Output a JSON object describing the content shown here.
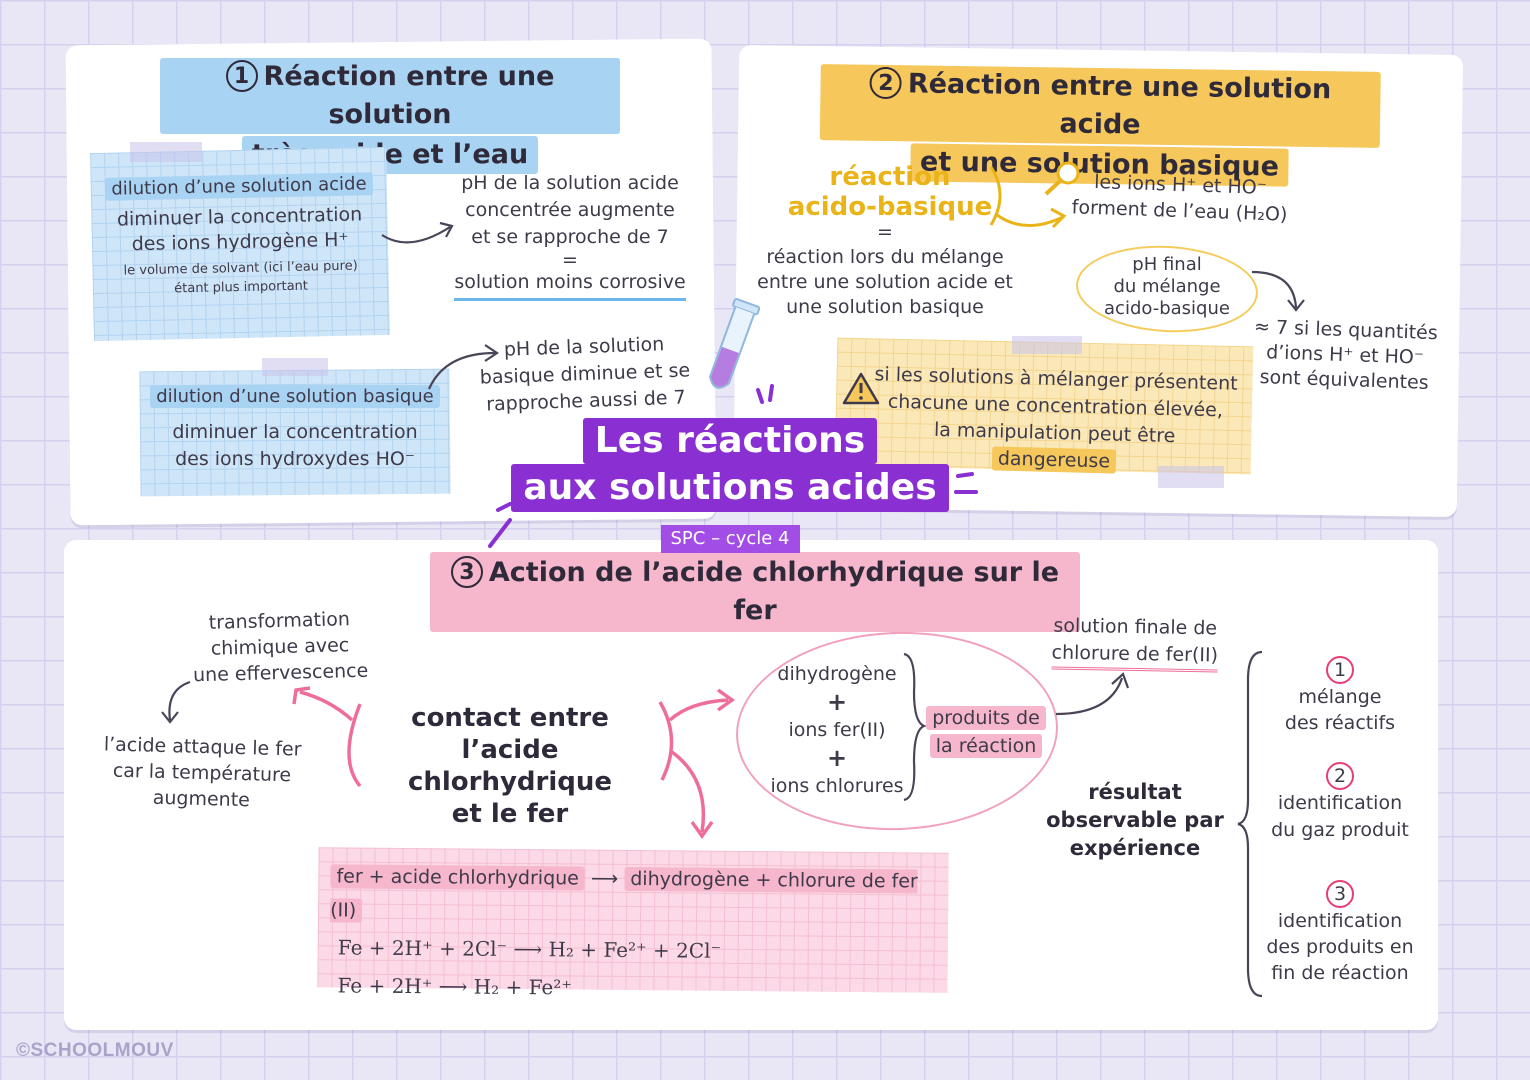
{
  "main_title": {
    "line1": "Les réactions",
    "line2": "aux solutions acides",
    "subtitle": "SPC – cycle 4"
  },
  "section1": {
    "number": "1",
    "title_line1": "Réaction entre une solution",
    "title_line2": "très acide et l’eau",
    "acid_box": {
      "label": "dilution d’une solution acide",
      "line1": "diminuer la concentration",
      "line2": "des ions hydrogène H⁺",
      "note1": "le volume de solvant (ici l’eau pure)",
      "note2": "étant plus important"
    },
    "acid_result": {
      "line1": "pH de la solution acide",
      "line2": "concentrée augmente",
      "line3": "et se rapproche de 7",
      "eq": "=",
      "conclusion": "solution moins corrosive"
    },
    "base_box": {
      "label": "dilution d’une solution basique",
      "line1": "diminuer la concentration",
      "line2": "des ions hydroxydes HO⁻"
    },
    "base_result": {
      "line1": "pH de la solution",
      "line2": "basique diminue et se",
      "line3": "rapproche aussi de 7"
    }
  },
  "section2": {
    "number": "2",
    "title_line1": "Réaction entre une solution acide",
    "title_line2": "et une solution basique",
    "reaction_line1": "réaction",
    "reaction_line2": "acido-basique",
    "eq": "=",
    "def_line1": "réaction lors du mélange",
    "def_line2": "entre une solution acide et",
    "def_line3": "une solution basique",
    "ions_line1": "les ions H⁺ et HO⁻",
    "ions_line2": "forment de l’eau (H₂O)",
    "ph_line1": "pH final",
    "ph_line2": "du mélange",
    "ph_line3": "acido-basique",
    "ph_res1": "≈ 7 si les quantités",
    "ph_res2": "d’ions H⁺ et HO⁻",
    "ph_res3": "sont équivalentes",
    "warn_line1": "si les solutions à mélanger présentent",
    "warn_line2": "chacune une concentration élevée,",
    "warn_line3": "la manipulation peut être",
    "warn_word": "dangereuse"
  },
  "section3": {
    "number": "3",
    "title": "Action de l’acide chlorhydrique sur le fer",
    "center_line1": "contact entre",
    "center_line2": "l’acide chlorhydrique",
    "center_line3": "et le fer",
    "transfo_line1": "transformation",
    "transfo_line2": "chimique avec",
    "transfo_line3": "une effervescence",
    "attack_line1": "l’acide attaque le fer",
    "attack_line2": "car la température",
    "attack_line3": "augmente",
    "products": [
      "dihydrogène",
      "+",
      "ions fer(II)",
      "+",
      "ions chlorures"
    ],
    "products_label_line1": "produits de",
    "products_label_line2": "la réaction",
    "final_line1": "solution finale de",
    "final_line2": "chlorure de fer(II)",
    "eq_words_left": "fer + acide chlorhydrique",
    "eq_words_arrow": "⟶",
    "eq_words_right": "dihydrogène + chlorure de fer (II)",
    "eq2": "Fe + 2H⁺ + 2Cl⁻ ⟶ H₂ + Fe²⁺ + 2Cl⁻",
    "eq3": "Fe + 2H⁺ ⟶ H₂ + Fe²⁺",
    "result_line1": "résultat",
    "result_line2": "observable par",
    "result_line3": "expérience",
    "steps": [
      {
        "n": "1",
        "line1": "mélange",
        "line2": "des réactifs",
        "line3": ""
      },
      {
        "n": "2",
        "line1": "identification",
        "line2": "du gaz produit",
        "line3": ""
      },
      {
        "n": "3",
        "line1": "identification",
        "line2": "des produits en",
        "line3": "fin de réaction"
      }
    ]
  },
  "footer": {
    "logo": "©SCHOOLMOUV"
  },
  "colors": {
    "blue": "#a9d3f3",
    "yellow": "#f6c75a",
    "pink": "#f6b6cb",
    "purple": "#8a2fd1"
  }
}
